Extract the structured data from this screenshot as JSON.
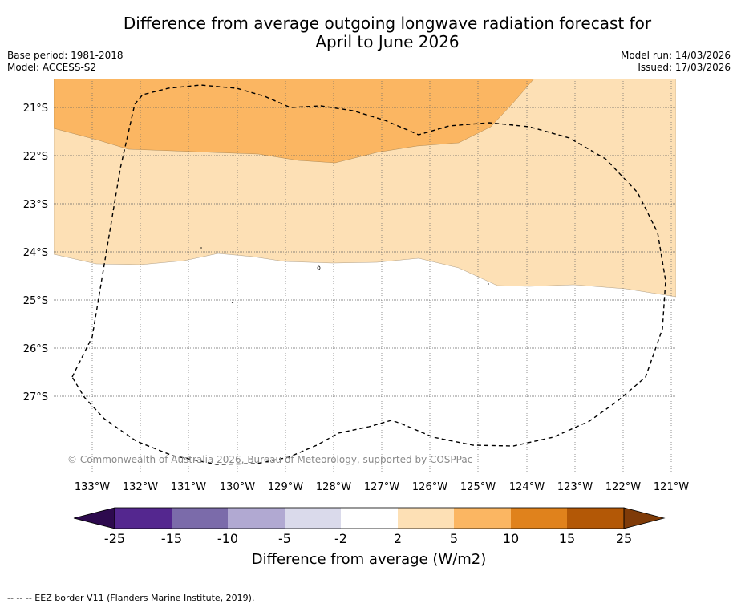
{
  "title_line1": "Difference from average outgoing longwave radiation forecast for",
  "title_line2": "April to June 2026",
  "meta": {
    "base_period": "Base period: 1981-2018",
    "model": "Model: ACCESS-S2",
    "model_run": "Model run: 14/03/2026",
    "issued": "Issued: 17/03/2026"
  },
  "map": {
    "lat_labels": [
      "21°S",
      "22°S",
      "23°S",
      "24°S",
      "25°S",
      "26°S",
      "27°S"
    ],
    "lon_labels": [
      "133°W",
      "132°W",
      "131°W",
      "130°W",
      "129°W",
      "128°W",
      "127°W",
      "126°W",
      "125°W",
      "124°W",
      "123°W",
      "122°W",
      "121°W"
    ],
    "copyright": "© Commonwealth of Australia 2026, Bureau of Meteorology, supported by COSPPac",
    "region_5_10_color": "#fbb662",
    "region_2_5_color": "#fde0b5"
  },
  "colorbar": {
    "ticks": [
      "-25",
      "-15",
      "-10",
      "-5",
      "-2",
      "2",
      "5",
      "10",
      "15",
      "25"
    ],
    "colors": [
      "#2d0a4e",
      "#54278f",
      "#7b6baa",
      "#b1a9d2",
      "#dadaeb",
      "#ffffff",
      "#fde0b5",
      "#fbb662",
      "#e0821c",
      "#b35806",
      "#7f3b08"
    ],
    "label": "Difference from average (W/m2)"
  },
  "footer": "--  --  -- EEZ border V11 (Flanders Marine Institute, 2019)."
}
